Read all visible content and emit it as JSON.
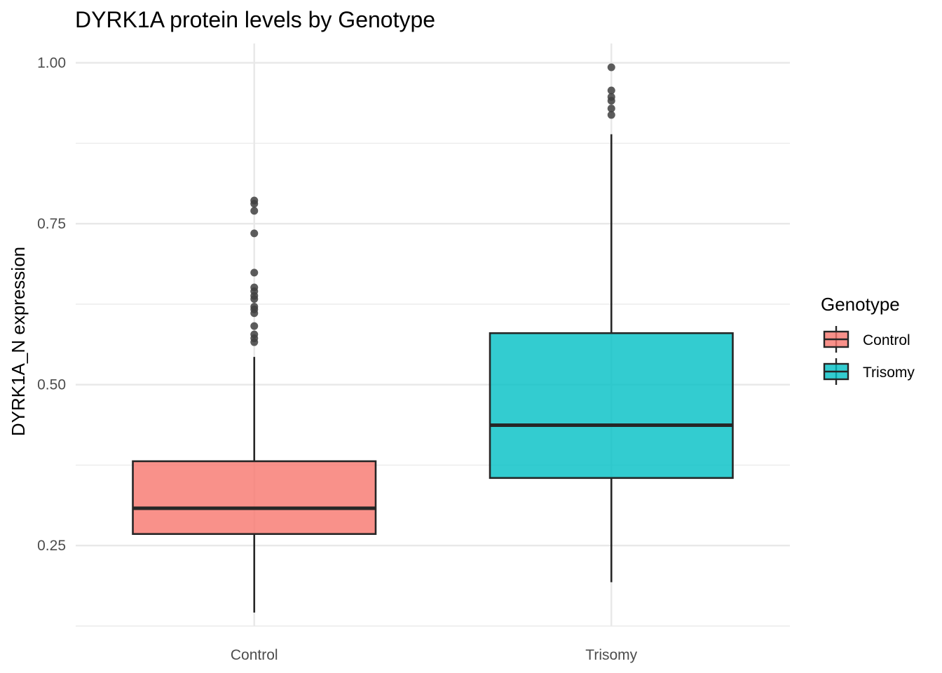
{
  "chart_data": {
    "type": "box",
    "title": "DYRK1A protein levels by Genotype",
    "xlabel": "",
    "ylabel": "DYRK1A_N expression",
    "categories": [
      "Control",
      "Trisomy"
    ],
    "ylim": [
      0.125,
      1.03
    ],
    "yticks": [
      0.25,
      0.5,
      0.75,
      1.0
    ],
    "ytick_labels": [
      "0.25",
      "0.50",
      "0.75",
      "1.00"
    ],
    "grid": true,
    "legend": {
      "title": "Genotype",
      "position": "right",
      "entries": [
        "Control",
        "Trisomy"
      ]
    },
    "colors": {
      "Control": "#F8766D",
      "Trisomy": "#00BFC4",
      "outline": "#262626",
      "outlier": "#404040",
      "grid": "#e8e8e8"
    },
    "series": [
      {
        "category": "Control",
        "whisker_low": 0.146,
        "q1": 0.268,
        "median": 0.308,
        "q3": 0.381,
        "whisker_high": 0.543,
        "outliers": [
          0.566,
          0.572,
          0.578,
          0.591,
          0.611,
          0.617,
          0.621,
          0.633,
          0.638,
          0.645,
          0.651,
          0.674,
          0.735,
          0.77,
          0.781,
          0.786
        ]
      },
      {
        "category": "Trisomy",
        "whisker_low": 0.193,
        "q1": 0.355,
        "median": 0.437,
        "q3": 0.58,
        "whisker_high": 0.889,
        "outliers": [
          0.919,
          0.929,
          0.941,
          0.947,
          0.957,
          0.993
        ]
      }
    ]
  }
}
